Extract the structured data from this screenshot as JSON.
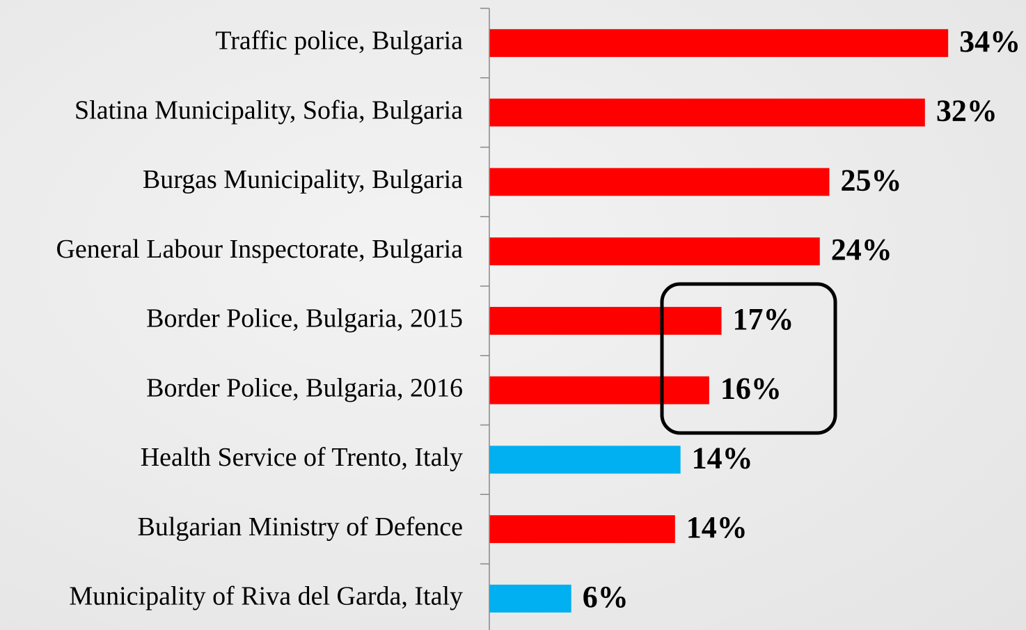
{
  "chart_data": {
    "type": "bar",
    "orientation": "horizontal",
    "categories": [
      "Traffic police, Bulgaria",
      "Slatina Municipality, Sofia, Bulgaria",
      "Burgas Municipality, Bulgaria",
      "General Labour Inspectorate, Bulgaria",
      "Border Police, Bulgaria, 2015",
      "Border Police, Bulgaria, 2016",
      "Health Service of Trento, Italy",
      "Bulgarian Ministry of Defence",
      "Municipality of Riva del Garda, Italy"
    ],
    "values": [
      33.6,
      31.9,
      24.9,
      24.2,
      17.0,
      16.1,
      14.0,
      13.6,
      6.0
    ],
    "value_labels": [
      "34%",
      "32%",
      "25%",
      "24%",
      "17%",
      "16%",
      "14%",
      "14%",
      "6%"
    ],
    "colors": [
      "#ff0000",
      "#ff0000",
      "#ff0000",
      "#ff0000",
      "#ff0000",
      "#ff0000",
      "#00b0f0",
      "#ff0000",
      "#00b0f0"
    ],
    "xlim": [
      0,
      39.3
    ]
  }
}
